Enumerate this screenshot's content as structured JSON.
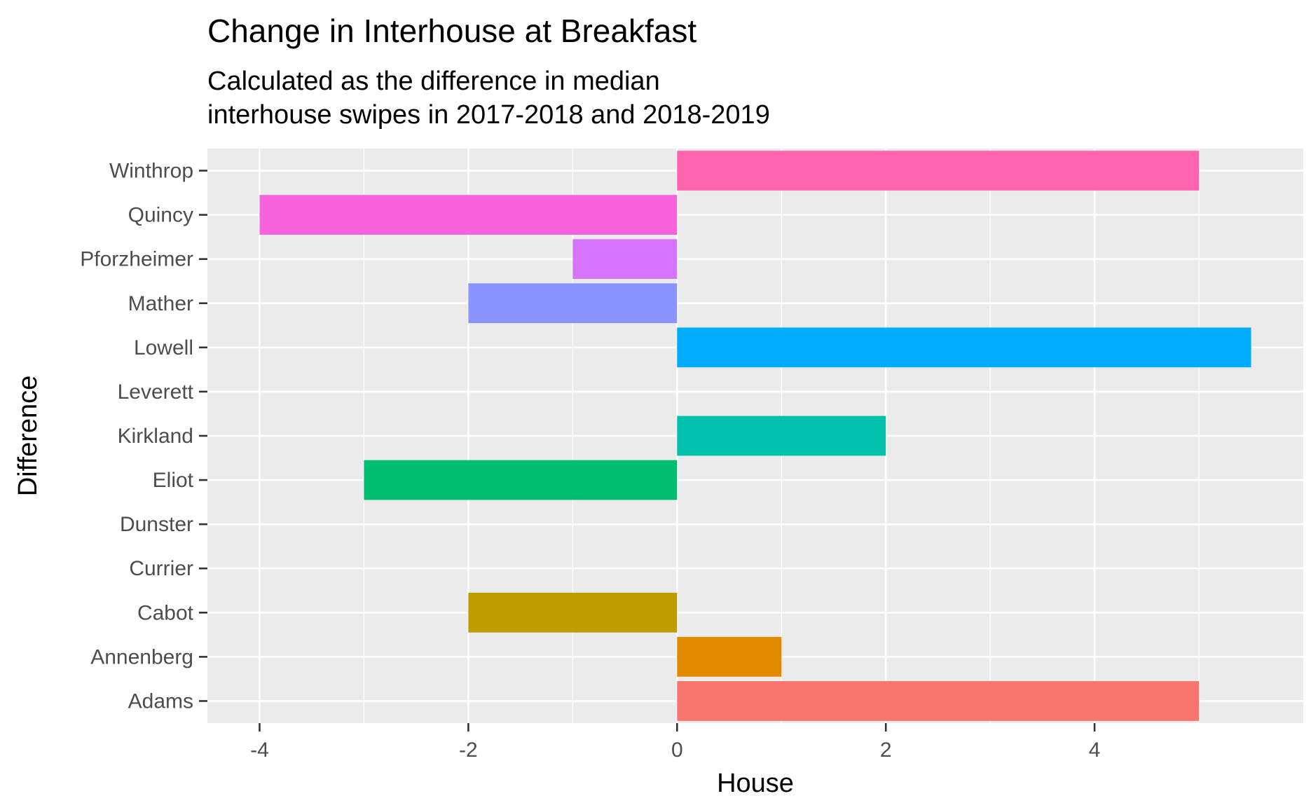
{
  "chart_data": {
    "type": "bar",
    "orientation": "horizontal",
    "title": "Change in Interhouse at Breakfast",
    "subtitle_lines": [
      "Calculated as the difference in median",
      "interhouse swipes in 2017-2018 and 2018-2019"
    ],
    "xlabel": "House",
    "ylabel": "Difference",
    "xlim": [
      -4.5,
      6
    ],
    "x_ticks": [
      -4,
      -2,
      0,
      2,
      4
    ],
    "x_tick_labels": [
      "-4",
      "-2",
      "0",
      "2",
      "4"
    ],
    "grid": true,
    "legend": "none",
    "categories": [
      "Adams",
      "Annenberg",
      "Cabot",
      "Currier",
      "Dunster",
      "Eliot",
      "Kirkland",
      "Leverett",
      "Lowell",
      "Mather",
      "Pforzheimer",
      "Quincy",
      "Winthrop"
    ],
    "values": [
      5,
      1,
      -2,
      0,
      0,
      -3,
      2,
      0,
      5.5,
      -2,
      -1,
      -4,
      5
    ],
    "colors": [
      "#F8766D",
      "#E18A00",
      "#BE9C00",
      "#8CAB00",
      "#24B700",
      "#00BE70",
      "#00C1AB",
      "#00BBDA",
      "#00ACFC",
      "#8B93FF",
      "#D575FE",
      "#F962DD",
      "#FF65AC"
    ]
  }
}
